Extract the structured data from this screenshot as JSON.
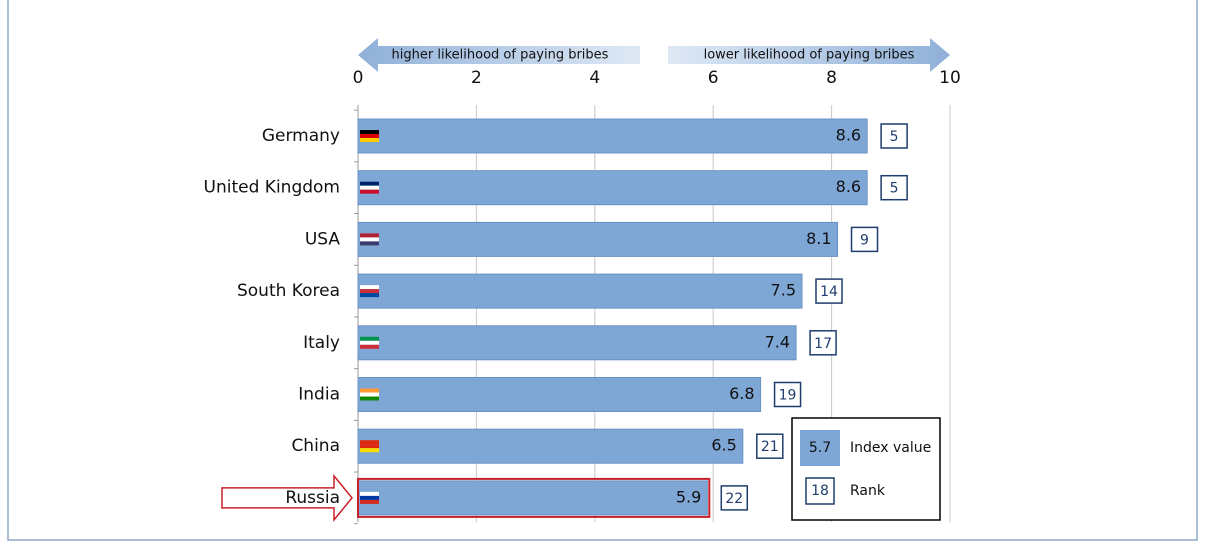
{
  "chart_data": {
    "type": "bar",
    "orientation": "horizontal",
    "categories": [
      "Germany",
      "United Kingdom",
      "USA",
      "South Korea",
      "Italy",
      "India",
      "China",
      "Russia"
    ],
    "values": [
      8.6,
      8.6,
      8.1,
      7.5,
      7.4,
      6.8,
      6.5,
      5.9
    ],
    "ranks": [
      5,
      5,
      9,
      14,
      17,
      19,
      21,
      22
    ],
    "color": "#7fa7d6",
    "rank_color": "#1f3d6e",
    "xlim": [
      0,
      10
    ],
    "xticks": [
      0,
      2,
      4,
      6,
      8,
      10
    ],
    "grid": true,
    "highlight": 7,
    "highlight_color": "#c8202a",
    "arrows": {
      "left": "higher likelihood of paying bribes",
      "right": "lower likelihood of paying bribes"
    },
    "legend": {
      "value_sample": "5.7",
      "value_label": "Index value",
      "rank_sample": "18",
      "rank_label": "Rank"
    }
  }
}
